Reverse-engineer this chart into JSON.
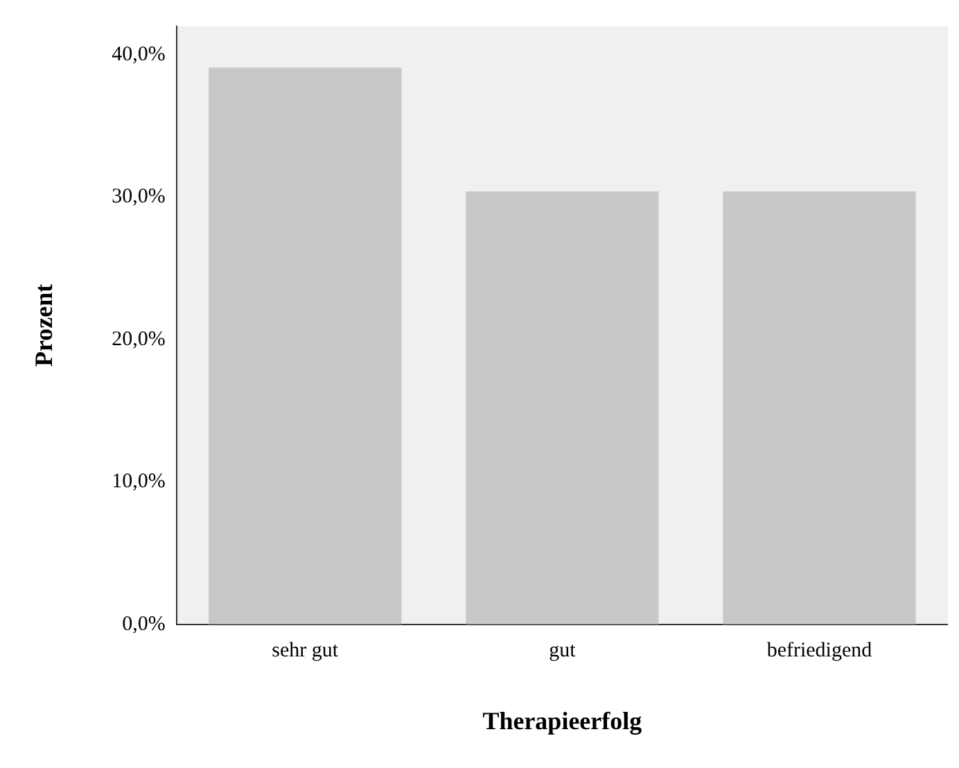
{
  "chart_data": {
    "type": "bar",
    "xlabel": "Therapieerfolg",
    "ylabel": "Prozent",
    "categories": [
      "sehr gut",
      "gut",
      "befriedigend"
    ],
    "values": [
      39.1,
      30.4,
      30.4
    ],
    "color": "#c8c8c8",
    "ylim": [
      0,
      42
    ],
    "yticks": [
      {
        "value": 0,
        "label": "0,0%"
      },
      {
        "value": 10,
        "label": "10,0%"
      },
      {
        "value": 20,
        "label": "20,0%"
      },
      {
        "value": 30,
        "label": "30,0%"
      },
      {
        "value": 40,
        "label": "40,0%"
      }
    ],
    "grid": false,
    "legend": false
  }
}
